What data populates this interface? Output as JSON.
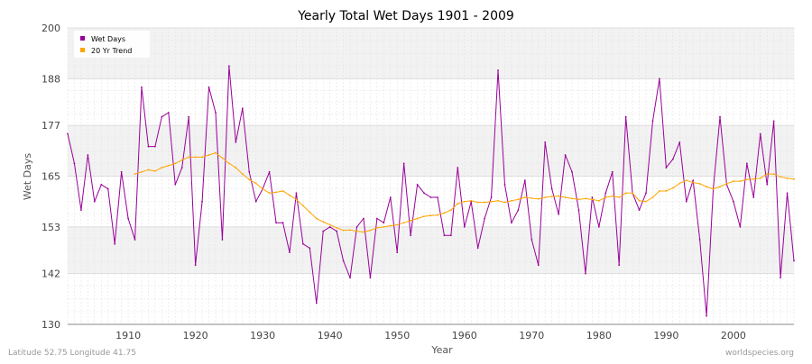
{
  "chart_data": {
    "type": "line",
    "title": "Yearly Total Wet Days 1901 - 2009",
    "xlabel": "Year",
    "ylabel": "Wet Days",
    "xlim": [
      1901,
      2009
    ],
    "ylim": [
      130,
      200
    ],
    "x_ticks": [
      1910,
      1920,
      1930,
      1940,
      1950,
      1960,
      1970,
      1980,
      1990,
      2000
    ],
    "y_ticks": [
      130,
      142,
      153,
      165,
      177,
      188,
      200
    ],
    "grid": true,
    "legend_position": "top-left",
    "series": [
      {
        "name": "Wet Days",
        "color": "#990099",
        "x_start": 1901,
        "values": [
          175,
          168,
          157,
          170,
          159,
          163,
          162,
          149,
          166,
          155,
          150,
          186,
          172,
          172,
          179,
          180,
          163,
          167,
          179,
          144,
          159,
          186,
          180,
          150,
          191,
          173,
          181,
          166,
          159,
          162,
          166,
          154,
          154,
          147,
          161,
          149,
          148,
          135,
          152,
          153,
          152,
          145,
          141,
          153,
          155,
          141,
          155,
          154,
          160,
          147,
          168,
          151,
          163,
          161,
          160,
          160,
          151,
          151,
          167,
          153,
          159,
          148,
          155,
          160,
          190,
          163,
          154,
          157,
          164,
          150,
          144,
          173,
          162,
          156,
          170,
          166,
          157,
          142,
          160,
          153,
          161,
          166,
          144,
          179,
          161,
          157,
          161,
          178,
          188,
          167,
          169,
          173,
          159,
          164,
          150,
          132,
          162,
          179,
          163,
          159,
          153,
          168,
          160,
          175,
          163,
          178,
          141,
          161,
          145
        ]
      },
      {
        "name": "20 Yr Trend",
        "color": "#ffa500",
        "x_start": 1911,
        "values": [
          165.5,
          166,
          166.5,
          166.2,
          167,
          167.5,
          168,
          168.8,
          169.5,
          169.5,
          169.5,
          170,
          170.5,
          169.3,
          168,
          167,
          165.5,
          164.2,
          163.3,
          162,
          161,
          161.2,
          161.5,
          160.5,
          159.5,
          158,
          156.5,
          155,
          154.2,
          153.5,
          152.8,
          152.2,
          152.3,
          152,
          151.8,
          152.2,
          152.8,
          153,
          153.3,
          153.5,
          154,
          154.5,
          155,
          155.5,
          155.7,
          155.8,
          156.3,
          157,
          158.5,
          159,
          159.2,
          158.8,
          158.8,
          159,
          159.2,
          158.8,
          159.2,
          159.5,
          160,
          159.8,
          159.6,
          160,
          160.2,
          160.3,
          160,
          159.7,
          159.5,
          159.7,
          159.5,
          159.2,
          160,
          160.3,
          160,
          161,
          161,
          159.2,
          159,
          160,
          161.5,
          161.5,
          162.2,
          163.3,
          164,
          163.5,
          163.2,
          162.5,
          162,
          162.5,
          163.2,
          163.8,
          163.8,
          164.2,
          164.3,
          164.5,
          165.5,
          165.5,
          164.8,
          164.5,
          164.3
        ]
      }
    ]
  },
  "footer": {
    "left": "Latitude 52.75 Longitude 41.75",
    "right": "worldspecies.org"
  }
}
